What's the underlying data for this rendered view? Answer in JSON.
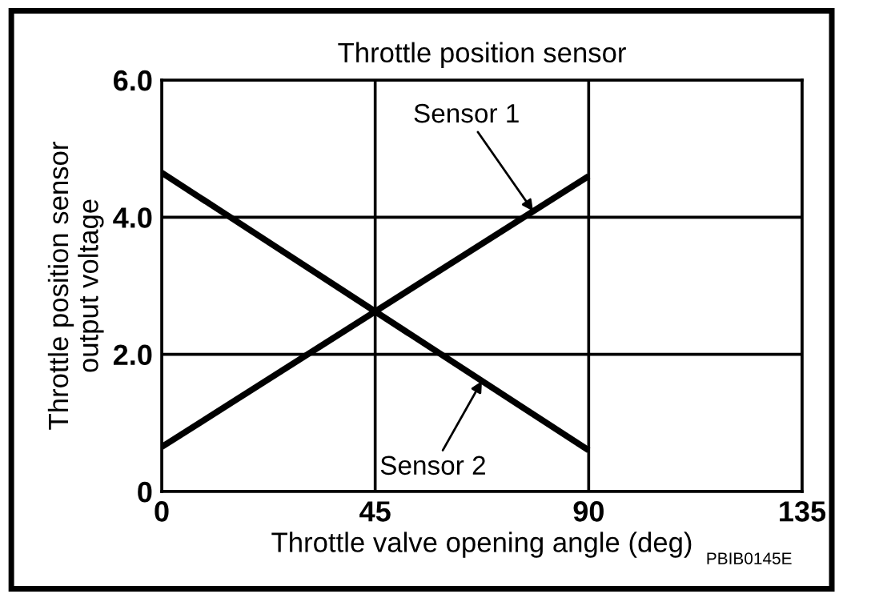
{
  "chart_data": {
    "type": "line",
    "title": "Throttle position sensor",
    "xlabel": "Throttle valve opening angle (deg)",
    "ylabel": "Throttle position sensor\noutput voltage",
    "x": [
      0,
      90
    ],
    "series": [
      {
        "name": "Sensor 1",
        "color": "#000000",
        "values": [
          0.65,
          4.6
        ]
      },
      {
        "name": "Sensor 2",
        "color": "#000000",
        "values": [
          4.65,
          0.6
        ]
      }
    ],
    "xlim": [
      0,
      135
    ],
    "xticks": [
      0,
      45,
      90,
      135
    ],
    "ylim": [
      0,
      6
    ],
    "yticks": [
      0,
      {
        "value": 2,
        "label": "2.0"
      },
      {
        "value": 4,
        "label": "4.0"
      },
      {
        "value": 6,
        "label": "6.0"
      }
    ],
    "grid": true,
    "marker": "none",
    "line_style": "solid",
    "annotations": [
      "PBIB0145E"
    ]
  }
}
